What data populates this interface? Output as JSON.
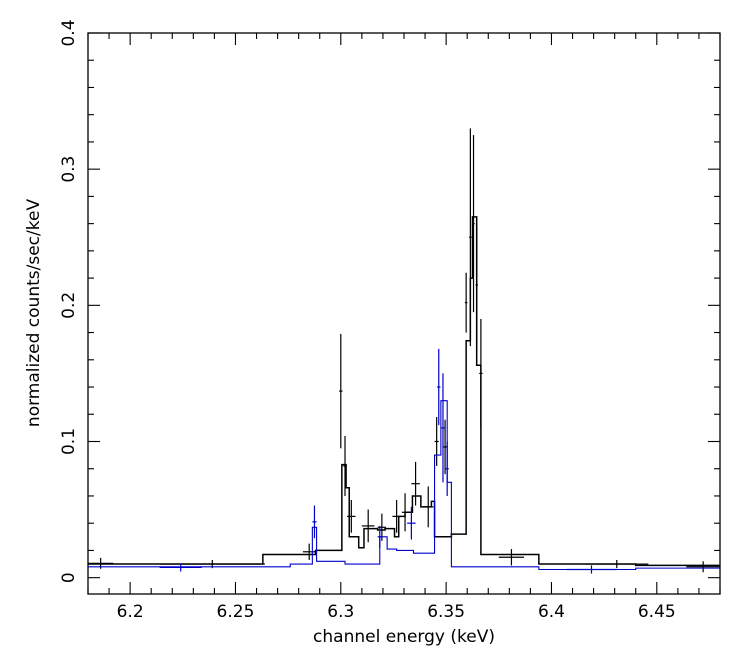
{
  "chart_data": {
    "type": "line",
    "title": "",
    "xlabel": "channel energy (keV)",
    "ylabel": "normalized counts/sec/keV",
    "xlim": [
      6.18,
      6.48
    ],
    "ylim": [
      -0.012,
      0.4
    ],
    "x_ticks": [
      6.2,
      6.25,
      6.3,
      6.35,
      6.4,
      6.45
    ],
    "x_tick_labels": [
      "6.2",
      "6.25",
      "6.3",
      "6.35",
      "6.4",
      "6.45"
    ],
    "y_ticks": [
      0,
      0.1,
      0.2,
      0.3,
      0.4
    ],
    "y_tick_labels": [
      "0",
      "0.1",
      "0.2",
      "0.3",
      "0.4"
    ],
    "grid": false,
    "legend": "none",
    "series": [
      {
        "color": "#000000",
        "model_steps": [
          [
            6.18,
            0.01
          ],
          [
            6.263,
            0.017
          ],
          [
            6.288,
            0.02
          ],
          [
            6.3005,
            0.083
          ],
          [
            6.3025,
            0.066
          ],
          [
            6.304,
            0.03
          ],
          [
            6.3085,
            0.022
          ],
          [
            6.311,
            0.036
          ],
          [
            6.3175,
            0.035
          ],
          [
            6.321,
            0.036
          ],
          [
            6.3255,
            0.03
          ],
          [
            6.3275,
            0.045
          ],
          [
            6.3305,
            0.048
          ],
          [
            6.334,
            0.06
          ],
          [
            6.338,
            0.052
          ],
          [
            6.343,
            0.056
          ],
          [
            6.3445,
            0.03
          ],
          [
            6.3525,
            0.032
          ],
          [
            6.3595,
            0.174
          ],
          [
            6.3615,
            0.22
          ],
          [
            6.3625,
            0.265
          ],
          [
            6.3645,
            0.156
          ],
          [
            6.3665,
            0.017
          ],
          [
            6.394,
            0.01
          ],
          [
            6.44,
            0.009
          ]
        ],
        "model_end": 6.48,
        "data_points": [
          {
            "x": 6.186,
            "y": 0.0105,
            "xerr": 0.006,
            "yerr": 0.004
          },
          {
            "x": 6.239,
            "y": 0.01,
            "xerr": 0.025,
            "yerr": 0.003
          },
          {
            "x": 6.285,
            "y": 0.019,
            "xerr": 0.003,
            "yerr": 0.006
          },
          {
            "x": 6.3,
            "y": 0.137,
            "xerr": 0.0008,
            "yerr": 0.042
          },
          {
            "x": 6.302,
            "y": 0.082,
            "xerr": 0.0008,
            "yerr": 0.022
          },
          {
            "x": 6.305,
            "y": 0.045,
            "xerr": 0.002,
            "yerr": 0.012
          },
          {
            "x": 6.313,
            "y": 0.038,
            "xerr": 0.003,
            "yerr": 0.012
          },
          {
            "x": 6.3195,
            "y": 0.037,
            "xerr": 0.002,
            "yerr": 0.01
          },
          {
            "x": 6.3265,
            "y": 0.045,
            "xerr": 0.002,
            "yerr": 0.012
          },
          {
            "x": 6.3305,
            "y": 0.048,
            "xerr": 0.0015,
            "yerr": 0.014
          },
          {
            "x": 6.3355,
            "y": 0.069,
            "xerr": 0.002,
            "yerr": 0.016
          },
          {
            "x": 6.3415,
            "y": 0.052,
            "xerr": 0.0025,
            "yerr": 0.015
          },
          {
            "x": 6.3455,
            "y": 0.1,
            "xerr": 0.001,
            "yerr": 0.018
          },
          {
            "x": 6.3495,
            "y": 0.096,
            "xerr": 0.001,
            "yerr": 0.02
          },
          {
            "x": 6.3595,
            "y": 0.202,
            "xerr": 0.0006,
            "yerr": 0.022
          },
          {
            "x": 6.3615,
            "y": 0.25,
            "xerr": 0.0006,
            "yerr": 0.08
          },
          {
            "x": 6.363,
            "y": 0.26,
            "xerr": 0.0006,
            "yerr": 0.065
          },
          {
            "x": 6.3645,
            "y": 0.215,
            "xerr": 0.0006,
            "yerr": 0.045
          },
          {
            "x": 6.3665,
            "y": 0.15,
            "xerr": 0.0008,
            "yerr": 0.04
          },
          {
            "x": 6.381,
            "y": 0.015,
            "xerr": 0.006,
            "yerr": 0.006
          },
          {
            "x": 6.431,
            "y": 0.01,
            "xerr": 0.015,
            "yerr": 0.003
          },
          {
            "x": 6.472,
            "y": 0.008,
            "xerr": 0.008,
            "yerr": 0.004
          }
        ]
      },
      {
        "color": "#0000cc",
        "model_steps": [
          [
            6.18,
            0.008
          ],
          [
            6.255,
            0.008
          ],
          [
            6.276,
            0.01
          ],
          [
            6.2865,
            0.037
          ],
          [
            6.2885,
            0.012
          ],
          [
            6.302,
            0.01
          ],
          [
            6.3185,
            0.03
          ],
          [
            6.322,
            0.021
          ],
          [
            6.3265,
            0.02
          ],
          [
            6.3345,
            0.018
          ],
          [
            6.3445,
            0.09
          ],
          [
            6.3475,
            0.13
          ],
          [
            6.3505,
            0.07
          ],
          [
            6.3525,
            0.008
          ],
          [
            6.394,
            0.006
          ],
          [
            6.44,
            0.007
          ]
        ],
        "model_end": 6.48,
        "data_points": [
          {
            "x": 6.224,
            "y": 0.0075,
            "xerr": 0.01,
            "yerr": 0.003
          },
          {
            "x": 6.2875,
            "y": 0.041,
            "xerr": 0.001,
            "yerr": 0.012
          },
          {
            "x": 6.3185,
            "y": 0.03,
            "xerr": 0.001,
            "yerr": 0.008
          },
          {
            "x": 6.3335,
            "y": 0.04,
            "xerr": 0.002,
            "yerr": 0.012
          },
          {
            "x": 6.3465,
            "y": 0.14,
            "xerr": 0.0008,
            "yerr": 0.028
          },
          {
            "x": 6.3485,
            "y": 0.11,
            "xerr": 0.0008,
            "yerr": 0.04
          },
          {
            "x": 6.3505,
            "y": 0.08,
            "xerr": 0.0008,
            "yerr": 0.02
          },
          {
            "x": 6.419,
            "y": 0.006,
            "xerr": 0.012,
            "yerr": 0.003
          }
        ]
      }
    ]
  }
}
